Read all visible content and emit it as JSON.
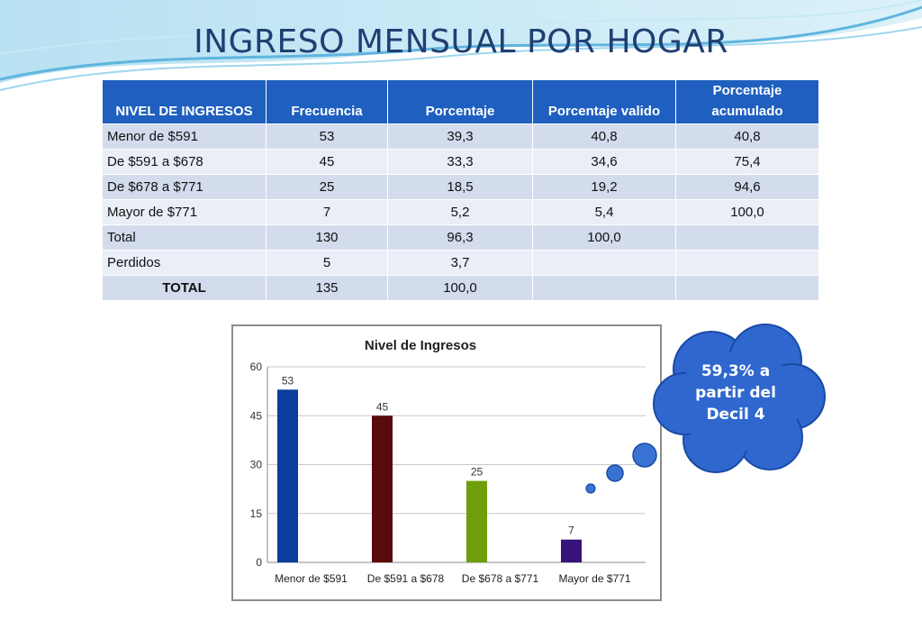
{
  "slide": {
    "title": "INGRESO MENSUAL POR HOGAR"
  },
  "table": {
    "headers": [
      "NIVEL DE INGRESOS",
      "Frecuencia",
      "Porcentaje",
      "Porcentaje valido",
      "Porcentaje acumulado"
    ],
    "rows": [
      {
        "label": "Menor de $591",
        "frecuencia": "53",
        "porcentaje": "39,3",
        "valido": "40,8",
        "acumulado": "40,8"
      },
      {
        "label": "De $591 a $678",
        "frecuencia": "45",
        "porcentaje": "33,3",
        "valido": "34,6",
        "acumulado": "75,4"
      },
      {
        "label": "De $678 a $771",
        "frecuencia": "25",
        "porcentaje": "18,5",
        "valido": "19,2",
        "acumulado": "94,6"
      },
      {
        "label": "Mayor de $771",
        "frecuencia": "7",
        "porcentaje": "5,2",
        "valido": "5,4",
        "acumulado": "100,0"
      },
      {
        "label": "Total",
        "frecuencia": "130",
        "porcentaje": "96,3",
        "valido": "100,0",
        "acumulado": ""
      },
      {
        "label": "Perdidos",
        "frecuencia": "5",
        "porcentaje": "3,7",
        "valido": "",
        "acumulado": ""
      },
      {
        "label": "TOTAL",
        "frecuencia": "135",
        "porcentaje": "100,0",
        "valido": "",
        "acumulado": ""
      }
    ]
  },
  "callout": {
    "lines": [
      "59,3% a",
      "partir del",
      "Decil 4"
    ]
  },
  "colors": {
    "title": "#1f3f73",
    "header_bg": "#1f5fbf",
    "row_odd": "#d3dced",
    "row_even": "#e9eef7",
    "cloud": "#2f67cf"
  },
  "chart_data": {
    "type": "bar",
    "title": "Nivel de Ingresos",
    "categories": [
      "Menor de $591",
      "De $591 a $678",
      "De $678 a $771",
      "Mayor de $771"
    ],
    "values": [
      53,
      45,
      25,
      7
    ],
    "data_labels": [
      "53",
      "45",
      "25",
      "7"
    ],
    "bar_colors": [
      "#0a3d9c",
      "#5a0a0a",
      "#6e9e0a",
      "#36137a"
    ],
    "ylim": [
      0,
      60
    ],
    "yticks": [
      0,
      15,
      30,
      45,
      60
    ],
    "xlabel": "",
    "ylabel": "",
    "grid": true,
    "legend": "none"
  }
}
